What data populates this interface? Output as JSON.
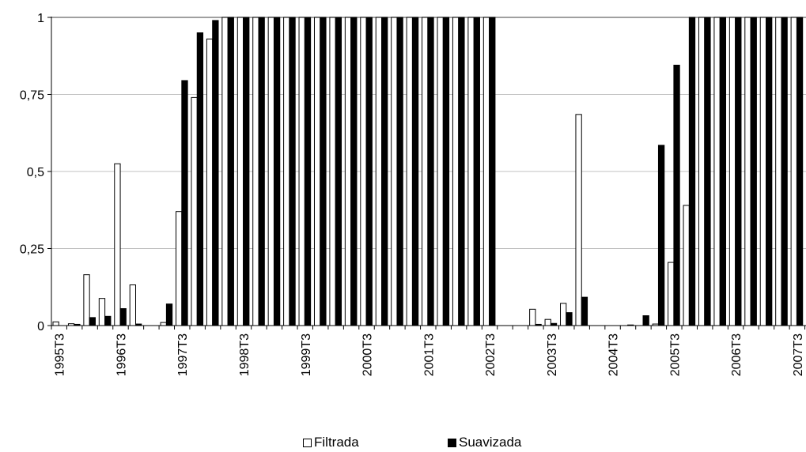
{
  "chart_data": {
    "type": "bar",
    "title": "",
    "xlabel": "",
    "ylabel": "",
    "ylim": [
      0,
      1
    ],
    "yticks": [
      0,
      0.25,
      0.5,
      0.75,
      1
    ],
    "ytick_labels": [
      "0",
      "0,25",
      "0,5",
      "0,75",
      "1"
    ],
    "grid": "horizontal",
    "legend_position": "bottom",
    "categories": [
      "1995T3",
      "1995T4",
      "1996T1",
      "1996T2",
      "1996T3",
      "1996T4",
      "1997T1",
      "1997T2",
      "1997T3",
      "1997T4",
      "1998T1",
      "1998T2",
      "1998T3",
      "1998T4",
      "1999T1",
      "1999T2",
      "1999T3",
      "1999T4",
      "2000T1",
      "2000T2",
      "2000T3",
      "2000T4",
      "2001T1",
      "2001T2",
      "2001T3",
      "2001T4",
      "2002T1",
      "2002T2",
      "2002T3",
      "2002T4",
      "2003T1",
      "2003T2",
      "2003T3",
      "2003T4",
      "2004T1",
      "2004T2",
      "2004T3",
      "2004T4",
      "2005T1",
      "2005T2",
      "2005T3",
      "2005T4",
      "2006T1",
      "2006T2",
      "2006T3",
      "2006T4",
      "2007T1",
      "2007T2",
      "2007T3"
    ],
    "xtick_labels": [
      "1995T3",
      "1996T3",
      "1997T3",
      "1998T3",
      "1999T3",
      "2000T3",
      "2001T3",
      "2002T3",
      "2003T3",
      "2004T3",
      "2005T3",
      "2006T3",
      "2007T3"
    ],
    "series": [
      {
        "name": "Filtrada",
        "color": "#ffffff",
        "values": [
          0.012,
          0.006,
          0.165,
          0.088,
          0.525,
          0.132,
          0.0,
          0.01,
          0.37,
          0.74,
          0.93,
          1,
          1,
          1,
          1,
          1,
          1,
          1,
          1,
          1,
          1,
          1,
          1,
          1,
          1,
          1,
          1,
          1,
          1,
          0.0,
          0.0,
          0.053,
          0.02,
          0.072,
          0.685,
          0.0,
          0.0,
          0.0,
          0.0,
          0.005,
          0.205,
          0.39,
          1,
          1,
          1,
          1,
          1,
          1,
          1
        ]
      },
      {
        "name": "Suavizada",
        "color": "#000000",
        "values": [
          0.0,
          0.004,
          0.026,
          0.03,
          0.055,
          0.005,
          0.0,
          0.07,
          0.795,
          0.95,
          0.99,
          1,
          1,
          1,
          1,
          1,
          1,
          1,
          1,
          1,
          1,
          1,
          1,
          1,
          1,
          1,
          1,
          1,
          1,
          0.0,
          0.0,
          0.004,
          0.007,
          0.042,
          0.092,
          0.0,
          0.0,
          0.002,
          0.032,
          0.585,
          0.845,
          1,
          1,
          1,
          1,
          1,
          1,
          1,
          1
        ]
      }
    ]
  }
}
